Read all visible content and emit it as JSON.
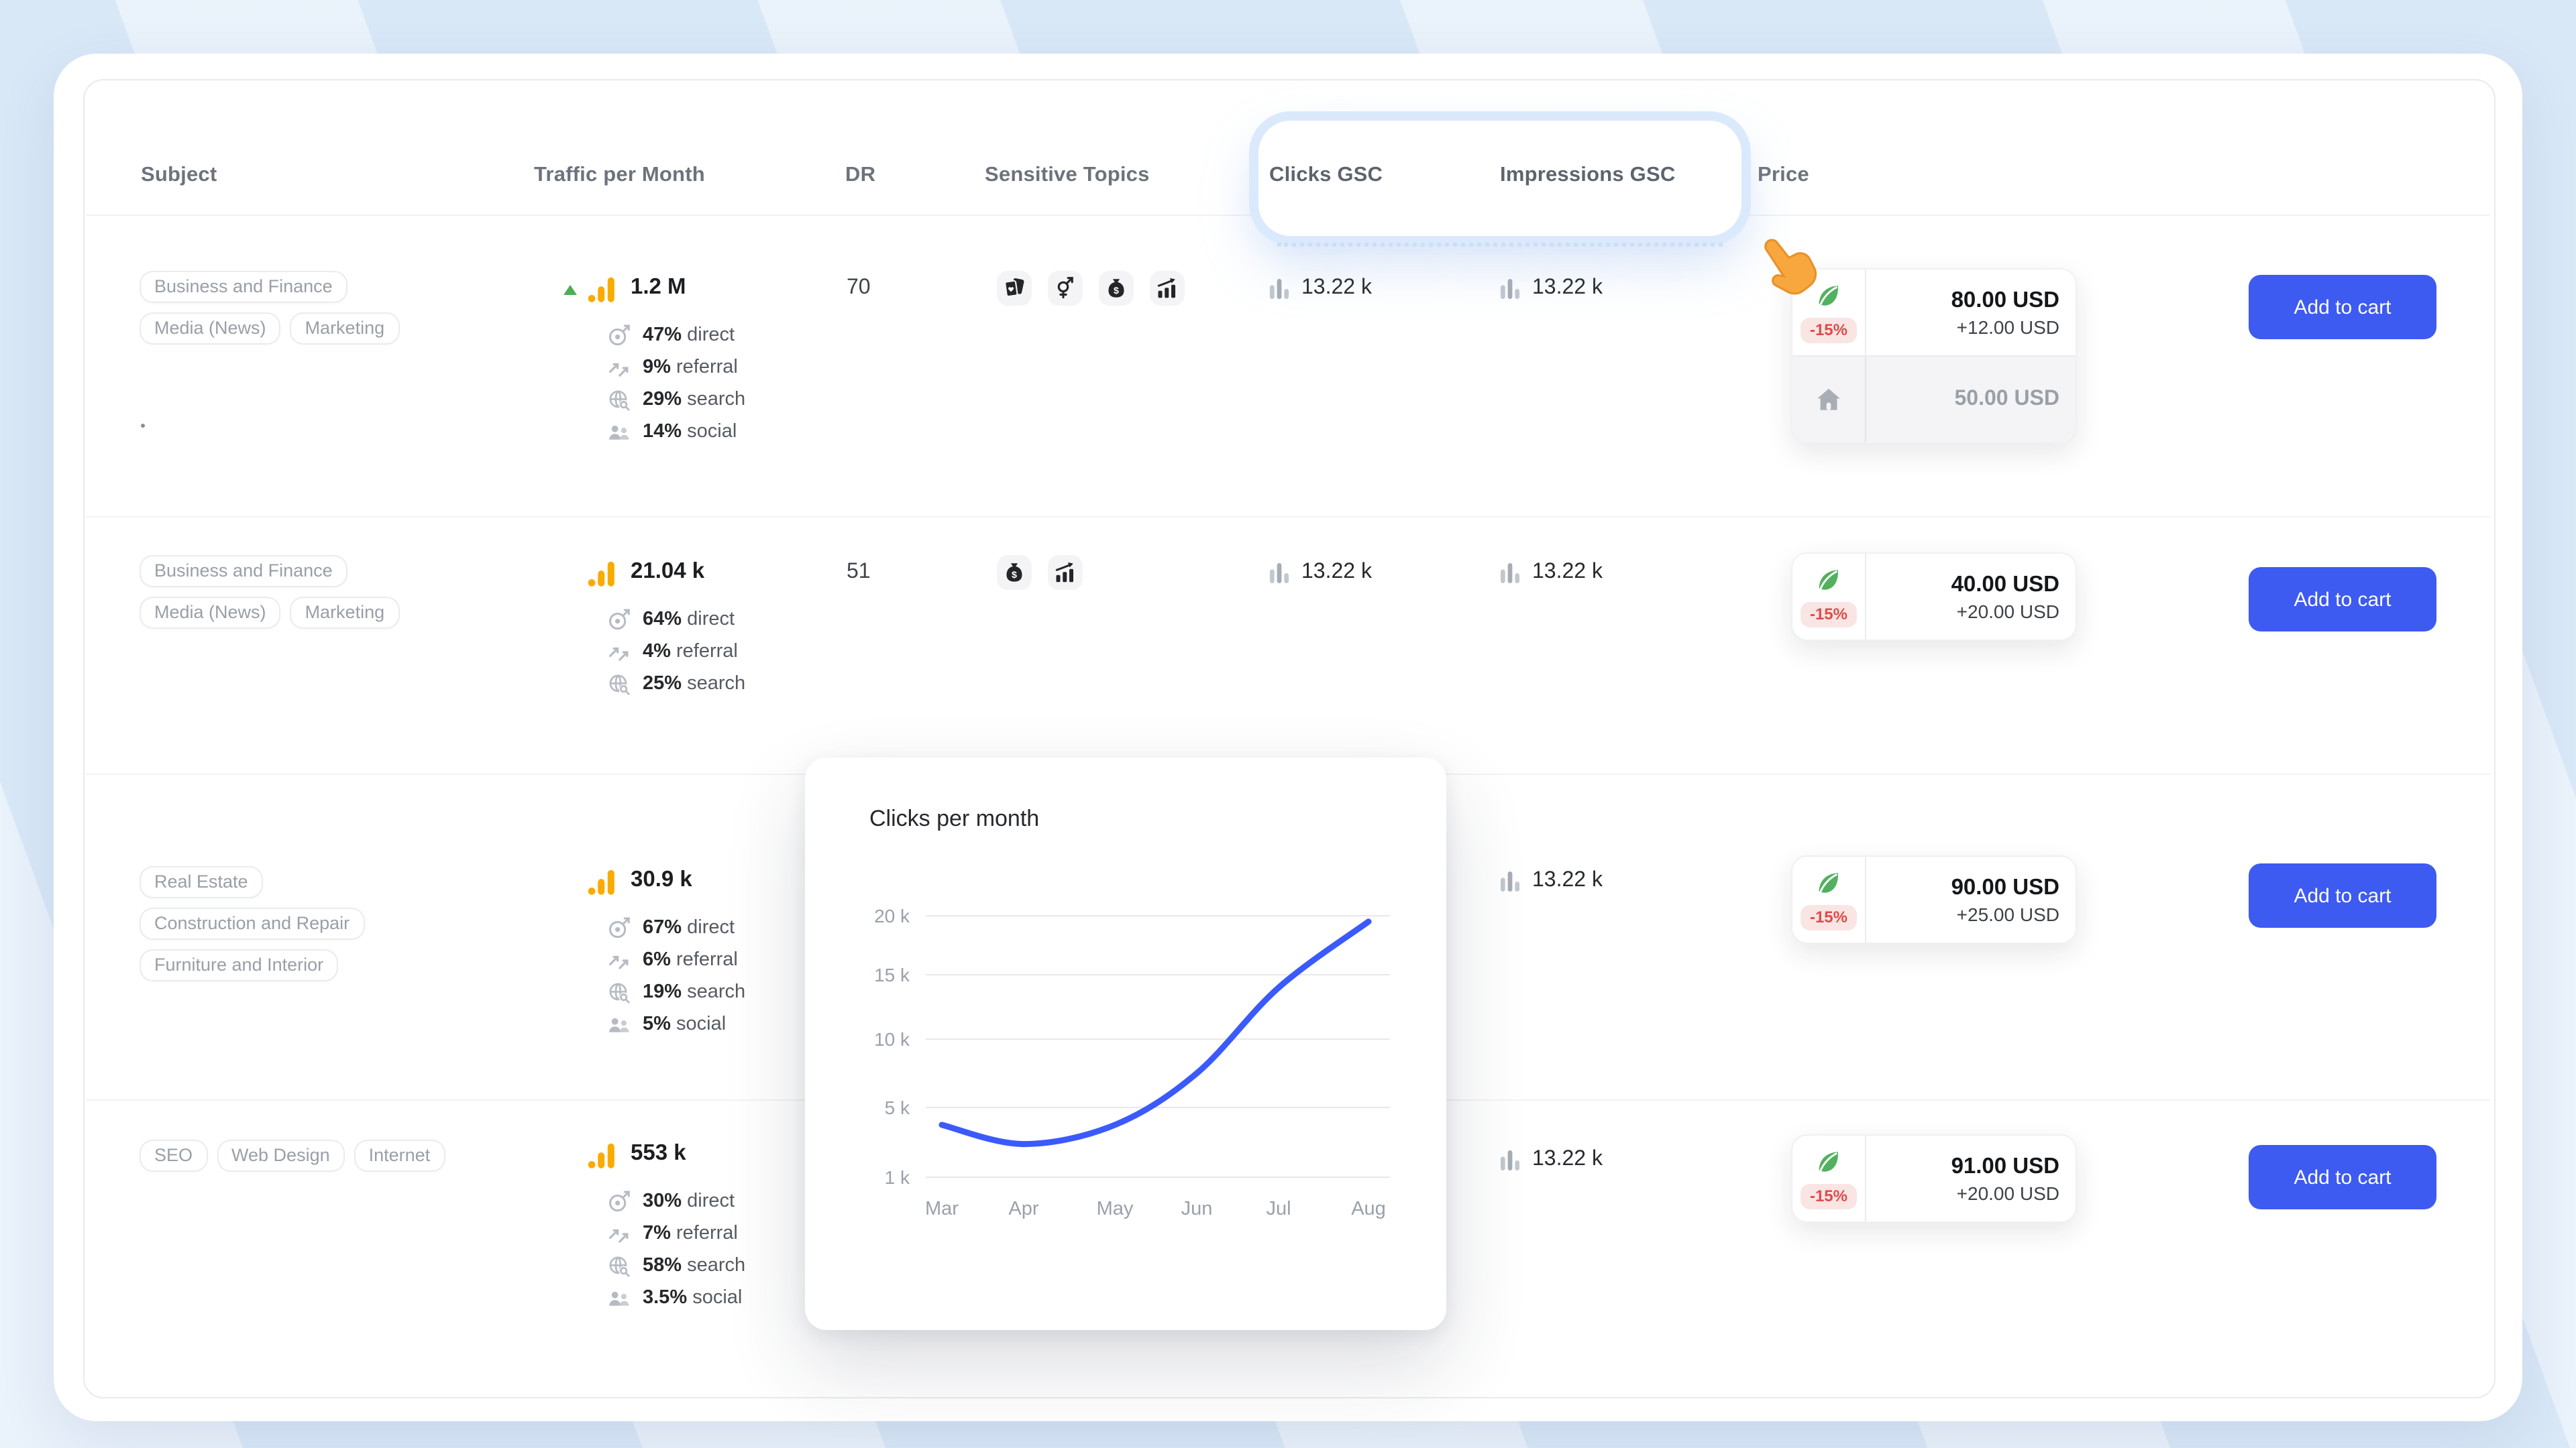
{
  "header": {
    "columns": [
      "Subject",
      "Traffic per Month",
      "DR",
      "Sensitive Topics",
      "Clicks GSC",
      "Impressions GSC",
      "Price"
    ],
    "highlighted_columns": [
      "Clicks GSC",
      "Impressions GSC"
    ]
  },
  "actions": {
    "add_to_cart": "Add to cart"
  },
  "rows": [
    {
      "subjects": [
        "Business and Finance",
        "Media (News)",
        "Marketing"
      ],
      "traffic": {
        "total": "1.2 M",
        "trend": "up",
        "sources": [
          {
            "value": "47%",
            "label": "direct"
          },
          {
            "value": "9%",
            "label": "referral"
          },
          {
            "value": "29%",
            "label": "search"
          },
          {
            "value": "14%",
            "label": "social"
          }
        ]
      },
      "dr": "70",
      "sensitive_topics": [
        "playing-cards",
        "gender-symbols",
        "money-bag",
        "chart-growth"
      ],
      "clicks_gsc": "13.22 k",
      "impressions_gsc": "13.22 k",
      "price": {
        "discount": "-15%",
        "amount": "80.00 USD",
        "extra": "+12.00 USD",
        "alt_amount": "50.00 USD"
      }
    },
    {
      "subjects": [
        "Business and Finance",
        "Media (News)",
        "Marketing"
      ],
      "traffic": {
        "total": "21.04 k",
        "trend": "none",
        "sources": [
          {
            "value": "64%",
            "label": "direct"
          },
          {
            "value": "4%",
            "label": "referral"
          },
          {
            "value": "25%",
            "label": "search"
          }
        ]
      },
      "dr": "51",
      "sensitive_topics": [
        "money-bag",
        "chart-growth"
      ],
      "clicks_gsc": "13.22 k",
      "impressions_gsc": "13.22 k",
      "price": {
        "discount": "-15%",
        "amount": "40.00 USD",
        "extra": "+20.00 USD"
      }
    },
    {
      "subjects": [
        "Real Estate",
        "Construction and Repair",
        "Furniture and Interior"
      ],
      "traffic": {
        "total": "30.9 k",
        "trend": "none",
        "sources": [
          {
            "value": "67%",
            "label": "direct"
          },
          {
            "value": "6%",
            "label": "referral"
          },
          {
            "value": "19%",
            "label": "search"
          },
          {
            "value": "5%",
            "label": "social"
          }
        ]
      },
      "impressions_gsc": "13.22 k",
      "price": {
        "discount": "-15%",
        "amount": "90.00 USD",
        "extra": "+25.00 USD"
      }
    },
    {
      "subjects": [
        "SEO",
        "Web Design",
        "Internet"
      ],
      "traffic": {
        "total": "553 k",
        "trend": "none",
        "sources": [
          {
            "value": "30%",
            "label": "direct"
          },
          {
            "value": "7%",
            "label": "referral"
          },
          {
            "value": "58%",
            "label": "search"
          },
          {
            "value": "3.5%",
            "label": "social"
          }
        ]
      },
      "impressions_gsc": "13.22 k",
      "price": {
        "discount": "-15%",
        "amount": "91.00 USD",
        "extra": "+20.00 USD"
      }
    }
  ],
  "popup": {
    "title": "Clicks per month"
  },
  "chart_data": {
    "type": "line",
    "title": "Clicks per month",
    "categories": [
      "Mar",
      "Apr",
      "May",
      "Jun",
      "Jul",
      "Aug"
    ],
    "values": [
      4000,
      2900,
      4000,
      7500,
      14000,
      19500
    ],
    "yticks": [
      20000,
      15000,
      10000,
      5000,
      1000
    ],
    "ytick_labels": [
      "20 k",
      "15 k",
      "10 k",
      "5 k",
      "1 k"
    ],
    "ylim": [
      1000,
      20000
    ],
    "xlabel": "",
    "ylabel": "",
    "grid": "horizontal",
    "legend": "none",
    "line_color": "#3B5AFB"
  },
  "cursor": "pointing-hand",
  "colors": {
    "accent_blue": "#3D5AF1",
    "discount_red": "#DF4B4A",
    "discount_bg": "#F9E5E3",
    "leaf_green": "#52B15E",
    "analytics_orange": "#F9AB00",
    "trend_up_green": "#4AAE57",
    "highlight_ring": "#DBE9FC",
    "page_background": "#D9E8F7"
  }
}
